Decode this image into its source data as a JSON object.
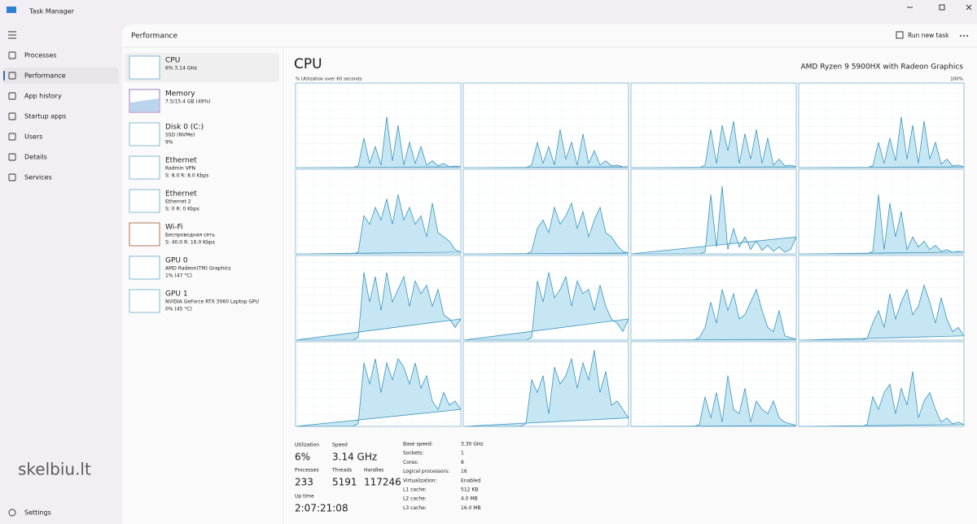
{
  "window": {
    "title": "Task Manager"
  },
  "nav": {
    "items": [
      {
        "label": "Processes"
      },
      {
        "label": "Performance"
      },
      {
        "label": "App history"
      },
      {
        "label": "Startup apps"
      },
      {
        "label": "Users"
      },
      {
        "label": "Details"
      },
      {
        "label": "Services"
      }
    ],
    "settings": "Settings"
  },
  "header": {
    "title": "Performance",
    "run_new_task": "Run new task"
  },
  "devices": [
    {
      "name": "CPU",
      "details": [
        "6% 3.14 GHz"
      ]
    },
    {
      "name": "Memory",
      "details": [
        "7.5/15.4 GB (49%)"
      ]
    },
    {
      "name": "Disk 0 (C:)",
      "details": [
        "SSD (NVMe)",
        "9%"
      ]
    },
    {
      "name": "Ethernet",
      "details": [
        "Radmin VPN",
        "S: 8.0 R: 8.0 Kbps"
      ]
    },
    {
      "name": "Ethernet",
      "details": [
        "Ethernet 2",
        "S: 0 R: 0 Kbps"
      ]
    },
    {
      "name": "Wi-Fi",
      "details": [
        "Беспроводная сеть",
        "S: 40.0 R: 16.0 Kbps"
      ]
    },
    {
      "name": "GPU 0",
      "details": [
        "AMD Radeon(TM) Graphics",
        "1% (47 °C)"
      ]
    },
    {
      "name": "GPU 1",
      "details": [
        "NVIDIA GeForce RTX 3060 Laptop GPU",
        "0% (45 °C)"
      ]
    }
  ],
  "cpu": {
    "title": "CPU",
    "model": "AMD Ryzen 9 5900HX with Radeon Graphics",
    "graph_caption": "% Utilization over 60 seconds",
    "utilization_max": {
      "value": 100,
      "label": "100%"
    },
    "utilization_graphs": [
      [
        0,
        0,
        0,
        0,
        0,
        0,
        0,
        0,
        0,
        0,
        0,
        2,
        35,
        5,
        25,
        3,
        60,
        8,
        50,
        3,
        30,
        5,
        25,
        3,
        8,
        2,
        5,
        1,
        2,
        1
      ],
      [
        0,
        0,
        0,
        0,
        0,
        0,
        0,
        0,
        0,
        0,
        0,
        0,
        3,
        30,
        5,
        25,
        3,
        45,
        10,
        30,
        3,
        40,
        5,
        20,
        3,
        8,
        2,
        3,
        1,
        1
      ],
      [
        0,
        0,
        0,
        0,
        0,
        0,
        0,
        0,
        0,
        0,
        0,
        0,
        0,
        3,
        45,
        5,
        50,
        20,
        55,
        5,
        40,
        10,
        45,
        5,
        35,
        3,
        10,
        2,
        3,
        1
      ],
      [
        0,
        0,
        0,
        0,
        0,
        0,
        0,
        0,
        0,
        0,
        0,
        0,
        0,
        2,
        30,
        5,
        35,
        8,
        60,
        10,
        50,
        5,
        55,
        10,
        30,
        4,
        10,
        2,
        3,
        1
      ],
      [
        0,
        0,
        0,
        0,
        0,
        0,
        0,
        0,
        0,
        0,
        0,
        2,
        45,
        35,
        55,
        40,
        65,
        35,
        70,
        40,
        55,
        35,
        45,
        20,
        60,
        25,
        20,
        15,
        5,
        2
      ],
      [
        0,
        0,
        0,
        0,
        0,
        0,
        0,
        0,
        0,
        0,
        0,
        0,
        3,
        30,
        40,
        25,
        55,
        35,
        45,
        60,
        30,
        50,
        20,
        40,
        55,
        25,
        20,
        10,
        3,
        1
      ],
      [
        0,
        0,
        0,
        0,
        0,
        0,
        0,
        0,
        0,
        0,
        0,
        0,
        0,
        2,
        70,
        8,
        80,
        5,
        30,
        8,
        20,
        5,
        15,
        4,
        10,
        3,
        8,
        2,
        5,
        20
      ],
      [
        0,
        0,
        0,
        0,
        0,
        0,
        0,
        0,
        0,
        0,
        0,
        0,
        0,
        3,
        70,
        5,
        60,
        20,
        50,
        5,
        20,
        8,
        15,
        5,
        10,
        3,
        5,
        2,
        3,
        2
      ],
      [
        0,
        0,
        0,
        0,
        0,
        0,
        0,
        0,
        0,
        0,
        0,
        3,
        80,
        45,
        75,
        35,
        80,
        45,
        60,
        75,
        40,
        70,
        55,
        65,
        40,
        60,
        30,
        25,
        15,
        25
      ],
      [
        0,
        0,
        0,
        0,
        0,
        0,
        0,
        0,
        0,
        0,
        0,
        0,
        3,
        70,
        45,
        80,
        50,
        60,
        75,
        40,
        70,
        55,
        60,
        35,
        65,
        40,
        25,
        20,
        10,
        25
      ],
      [
        0,
        0,
        0,
        0,
        0,
        0,
        0,
        0,
        0,
        0,
        0,
        0,
        3,
        15,
        45,
        20,
        60,
        35,
        55,
        25,
        30,
        45,
        60,
        35,
        15,
        10,
        35,
        5,
        3,
        1
      ],
      [
        0,
        0,
        0,
        0,
        0,
        0,
        0,
        0,
        0,
        0,
        0,
        0,
        2,
        20,
        35,
        15,
        55,
        25,
        45,
        60,
        30,
        40,
        65,
        45,
        20,
        50,
        25,
        10,
        15,
        5
      ],
      [
        0,
        0,
        0,
        0,
        0,
        0,
        0,
        0,
        0,
        0,
        0,
        3,
        75,
        50,
        80,
        40,
        75,
        55,
        80,
        70,
        50,
        75,
        45,
        60,
        30,
        20,
        40,
        25,
        30,
        20
      ],
      [
        0,
        0,
        0,
        0,
        0,
        0,
        0,
        0,
        0,
        0,
        0,
        3,
        55,
        40,
        60,
        15,
        70,
        50,
        60,
        80,
        45,
        75,
        55,
        90,
        40,
        65,
        25,
        30,
        20,
        10
      ],
      [
        0,
        0,
        0,
        0,
        0,
        0,
        0,
        0,
        0,
        0,
        0,
        0,
        2,
        35,
        10,
        40,
        5,
        60,
        20,
        15,
        45,
        5,
        30,
        20,
        15,
        30,
        10,
        5,
        3,
        1
      ],
      [
        0,
        0,
        0,
        0,
        0,
        0,
        0,
        0,
        0,
        0,
        0,
        0,
        2,
        35,
        20,
        40,
        50,
        15,
        45,
        25,
        65,
        10,
        30,
        40,
        20,
        5,
        10,
        3,
        5,
        2
      ]
    ],
    "stats": [
      {
        "label": "Utilization",
        "value": "6%"
      },
      {
        "label": "Speed",
        "value": "3.14 GHz"
      },
      {
        "label": "Processes",
        "value": "233"
      },
      {
        "label": "Threads",
        "value": "5191"
      },
      {
        "label": "Handles",
        "value": "117246"
      },
      {
        "label": "Up time",
        "value": "2:07:21:08"
      }
    ],
    "specs": [
      {
        "label": "Base speed:",
        "value": "3.30 GHz"
      },
      {
        "label": "Sockets:",
        "value": "1"
      },
      {
        "label": "Cores:",
        "value": "8"
      },
      {
        "label": "Logical processors:",
        "value": "16"
      },
      {
        "label": "Virtualization:",
        "value": "Enabled"
      },
      {
        "label": "L1 cache:",
        "value": "512 KB"
      },
      {
        "label": "L2 cache:",
        "value": "4.0 MB"
      },
      {
        "label": "L3 cache:",
        "value": "16.0 MB"
      }
    ]
  },
  "watermark": "skelbiu.lt"
}
